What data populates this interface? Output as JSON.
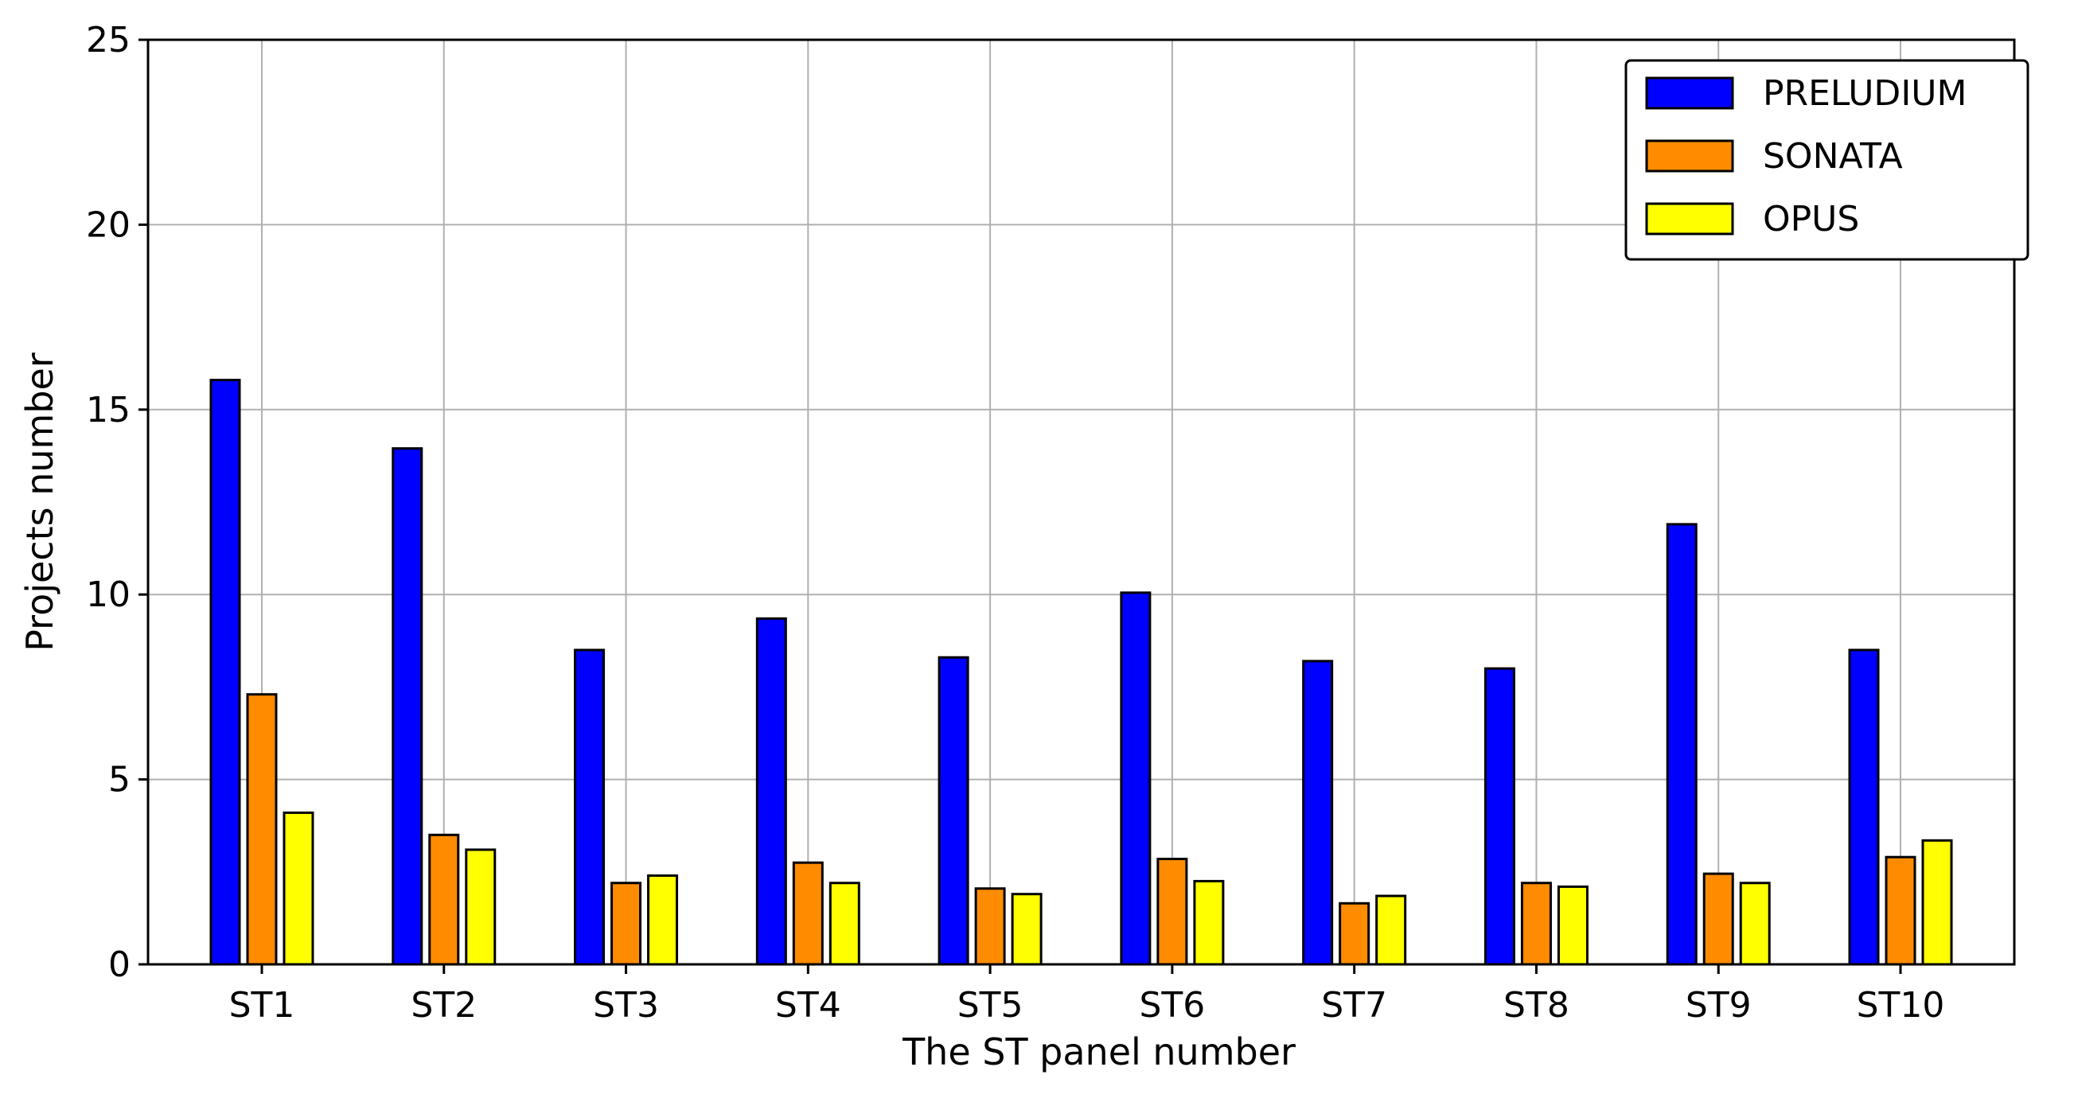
{
  "chart_data": {
    "type": "bar",
    "title": "",
    "xlabel": "The ST panel number",
    "ylabel": "Projects number",
    "ylim": [
      0,
      25
    ],
    "yticks": [
      0,
      5,
      10,
      15,
      20,
      25
    ],
    "categories": [
      "ST1",
      "ST2",
      "ST3",
      "ST4",
      "ST5",
      "ST6",
      "ST7",
      "ST8",
      "ST9",
      "ST10"
    ],
    "series": [
      {
        "name": "PRELUDIUM",
        "color": "#0000ff",
        "values": [
          15.8,
          13.95,
          8.5,
          9.35,
          8.3,
          10.05,
          8.2,
          8.0,
          11.9,
          8.5
        ]
      },
      {
        "name": "SONATA",
        "color": "#ff8c00",
        "values": [
          7.3,
          3.5,
          2.2,
          2.75,
          2.05,
          2.85,
          1.65,
          2.2,
          2.45,
          2.9
        ]
      },
      {
        "name": "OPUS",
        "color": "#ffff00",
        "values": [
          4.1,
          3.1,
          2.4,
          2.2,
          1.9,
          2.25,
          1.85,
          2.1,
          2.2,
          3.35
        ]
      }
    ],
    "grid": true,
    "legend_position": "top-right"
  }
}
